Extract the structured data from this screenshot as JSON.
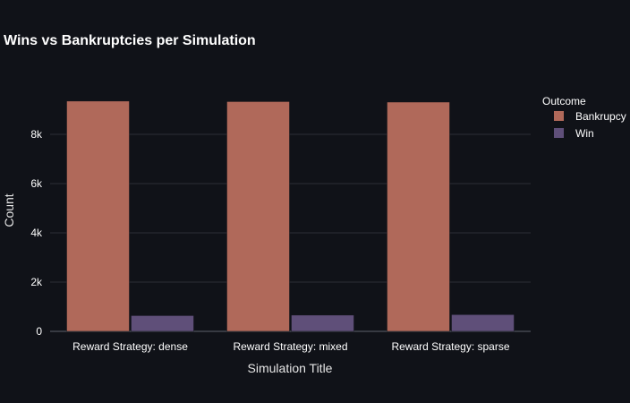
{
  "chart_data": {
    "type": "bar",
    "title": "Wins vs Bankruptcies per Simulation",
    "xlabel": "Simulation Title",
    "ylabel": "Count",
    "categories": [
      "Reward Strategy: dense",
      "Reward Strategy: mixed",
      "Reward Strategy: sparse"
    ],
    "series": [
      {
        "name": "Bankrupcy",
        "values": [
          9350,
          9330,
          9310
        ],
        "color": "#b0695a"
      },
      {
        "name": "Win",
        "values": [
          640,
          660,
          680
        ],
        "color": "#5f4f79"
      }
    ],
    "ylim": [
      0,
      10000
    ],
    "yticks": [
      0,
      2000,
      4000,
      6000,
      8000
    ],
    "ytick_labels": [
      "0",
      "2k",
      "4k",
      "6k",
      "8k"
    ],
    "legend": {
      "title": "Outcome",
      "placement": "right"
    },
    "grid": true,
    "barmode": "group"
  }
}
